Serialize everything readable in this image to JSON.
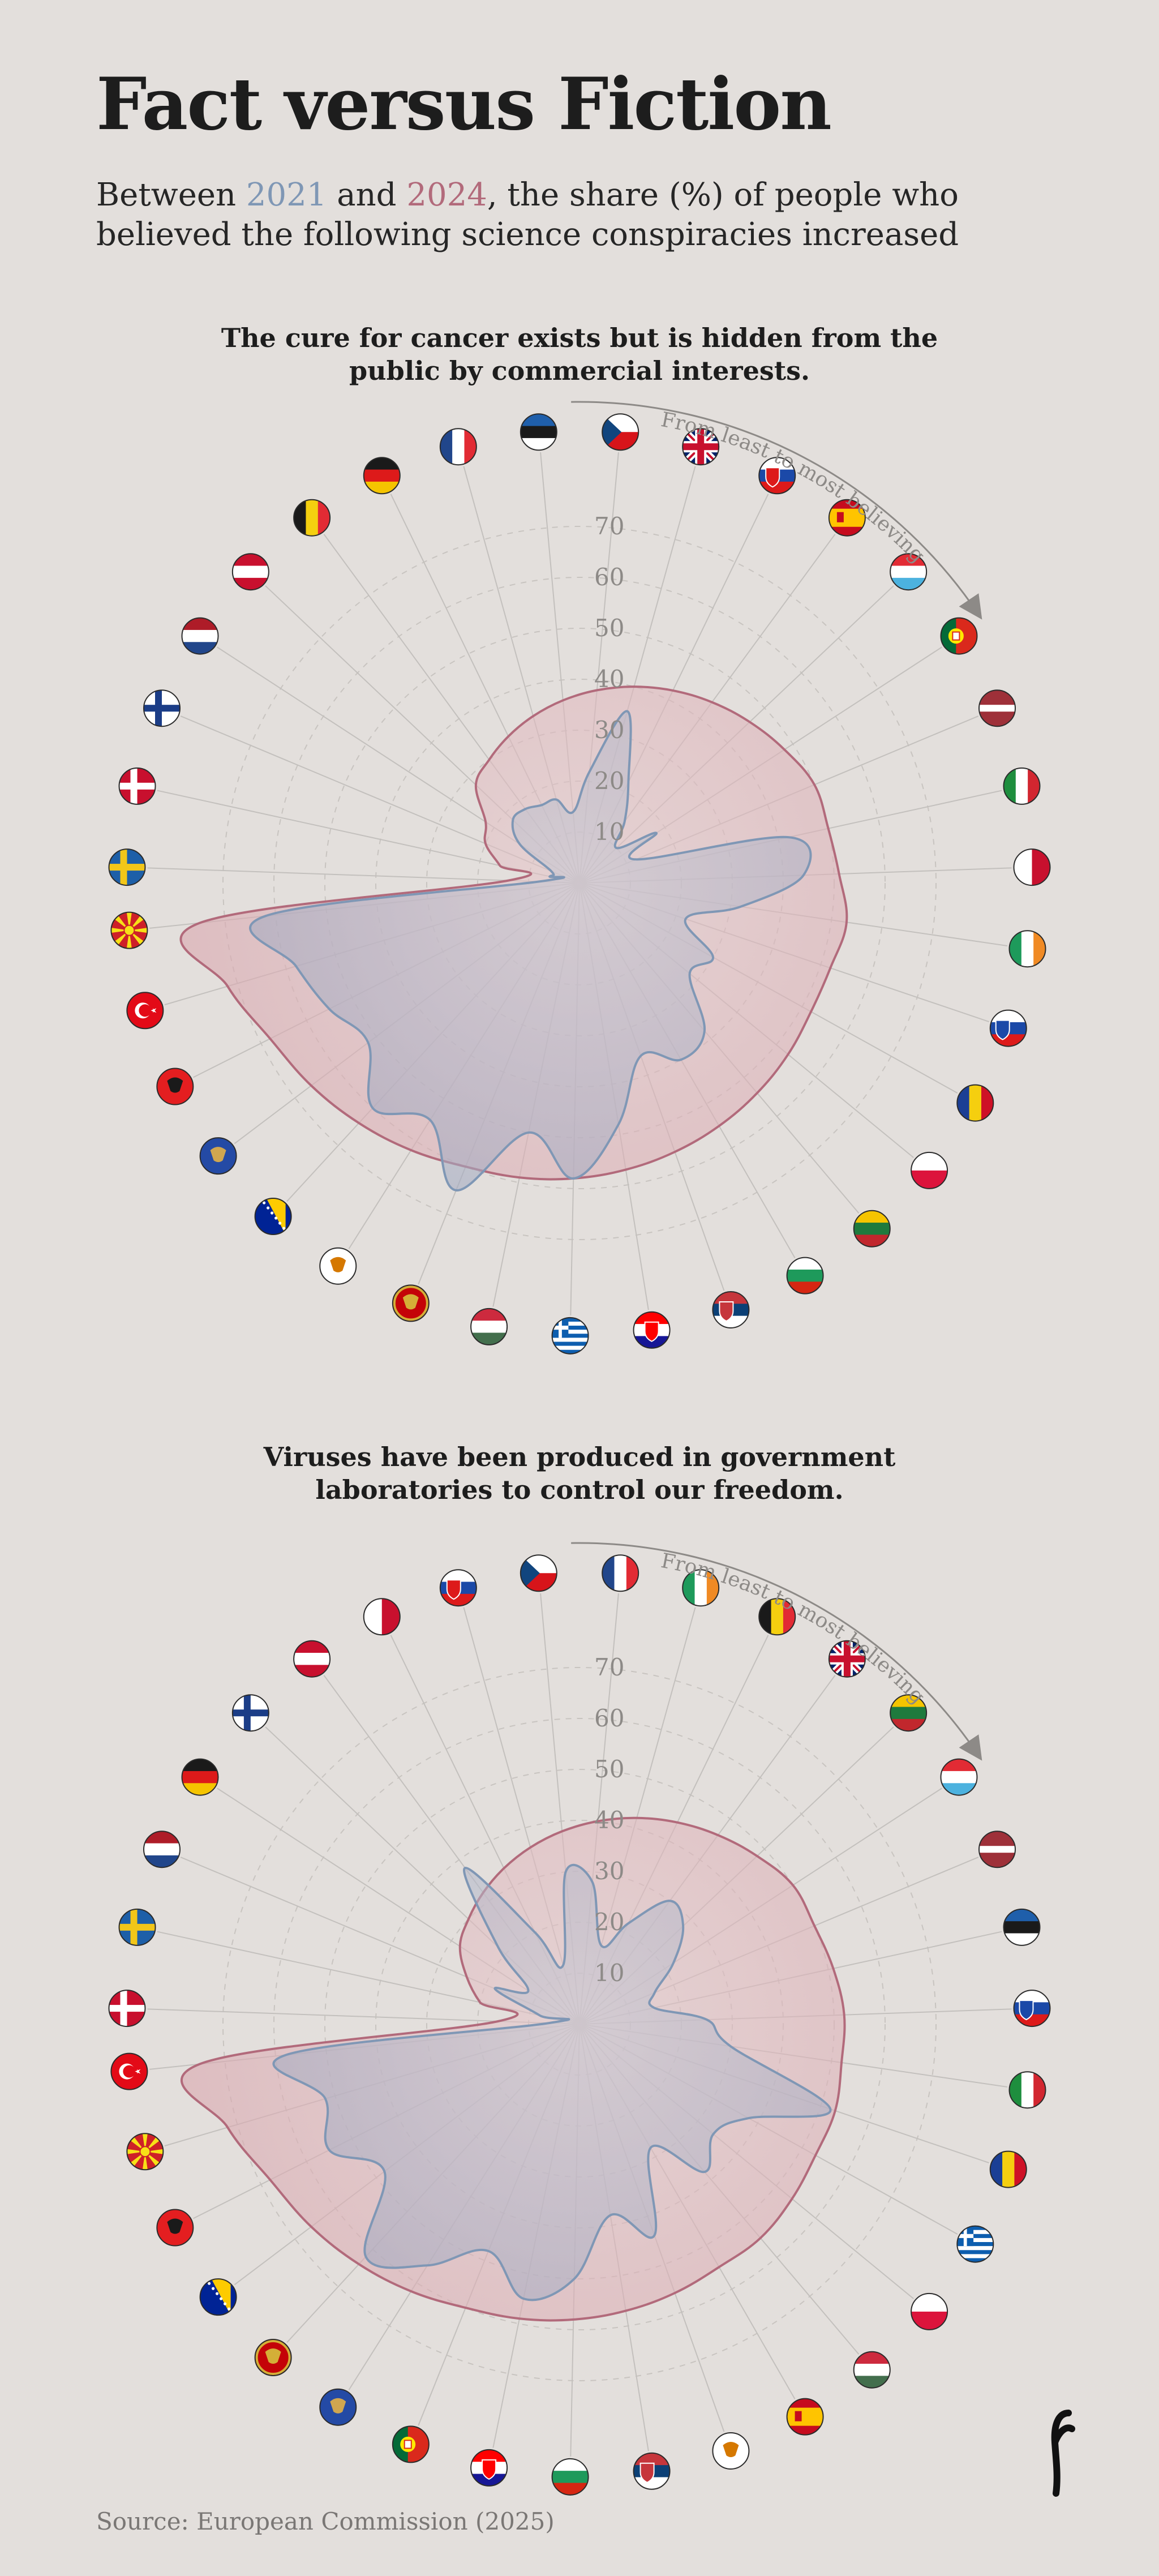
{
  "header": {
    "title": "Fact versus Fiction",
    "subtitle_parts": [
      "Between ",
      "2021",
      " and ",
      "2024",
      ", the share (%) of people who believed the following science conspiracies increased"
    ]
  },
  "colors": {
    "y2021": "#7f97b5",
    "y2024": "#b26a7b",
    "fill2021": "#9aa3bd",
    "fill2024": "#d9a5ad",
    "background": "#e3dfdc"
  },
  "arrow_label": "From least to most believing",
  "source": "Source: European Commission (2025)",
  "chart_data": [
    {
      "type": "radar",
      "title": "The cure for cancer exists but is hidden from the public by commercial interests.",
      "r_ticks": [
        10,
        20,
        30,
        40,
        50,
        60,
        70
      ],
      "rlim": [
        0,
        80
      ],
      "grid": true,
      "countries": [
        "Sweden",
        "Denmark",
        "Finland",
        "Netherlands",
        "Austria",
        "Belgium",
        "Germany",
        "France",
        "Estonia",
        "Czechia",
        "United Kingdom",
        "Slovakia",
        "Spain",
        "Luxembourg",
        "Portugal",
        "Latvia",
        "Italy",
        "Malta",
        "Ireland",
        "Slovenia",
        "Romania",
        "Poland",
        "Lithuania",
        "Bulgaria",
        "Serbia",
        "Croatia",
        "Greece",
        "Hungary",
        "Montenegro",
        "Cyprus",
        "Bosnia and Herzegovina",
        "Kosovo",
        "Albania",
        "Türkiye",
        "North Macedonia"
      ],
      "series": [
        {
          "name": "2021",
          "values": [
            8,
            6,
            6,
            14,
            18,
            18,
            17,
            17,
            14,
            22,
            35,
            22,
            15,
            10,
            18,
            12,
            42,
            44,
            32,
            22,
            30,
            28,
            38,
            40,
            36,
            48,
            58,
            50,
            65,
            55,
            60,
            52,
            55,
            58,
            62
          ]
        },
        {
          "name": "2024",
          "values": [
            14,
            16,
            20,
            22,
            28,
            30,
            32,
            34,
            36,
            38,
            40,
            42,
            44,
            46,
            48,
            50,
            50,
            51,
            53,
            52,
            52,
            53,
            54,
            55,
            56,
            57,
            58,
            59,
            60,
            62,
            64,
            66,
            68,
            72,
            75
          ]
        }
      ]
    },
    {
      "type": "radar",
      "title": "Viruses have been produced in government laboratories to control our freedom.",
      "r_ticks": [
        10,
        20,
        30,
        40,
        50,
        60,
        70
      ],
      "rlim": [
        0,
        80
      ],
      "grid": true,
      "countries": [
        "Denmark",
        "Sweden",
        "Netherlands",
        "Germany",
        "Finland",
        "Austria",
        "Malta",
        "Slovakia",
        "Czechia",
        "France",
        "Ireland",
        "Belgium",
        "United Kingdom",
        "Lithuania",
        "Luxembourg",
        "Latvia",
        "Estonia",
        "Slovenia",
        "Italy",
        "Romania",
        "Greece",
        "Poland",
        "Hungary",
        "Spain",
        "Cyprus",
        "Serbia",
        "Bulgaria",
        "Croatia",
        "Portugal",
        "Kosovo",
        "Montenegro",
        "Bosnia and Herzegovina",
        "Albania",
        "North Macedonia",
        "Türkiye"
      ],
      "series": [
        {
          "name": "2021",
          "values": [
            6,
            8,
            18,
            12,
            22,
            38,
            20,
            12,
            30,
            28,
            16,
            22,
            30,
            28,
            22,
            16,
            15,
            25,
            30,
            52,
            38,
            34,
            38,
            28,
            44,
            38,
            50,
            55,
            48,
            56,
            62,
            48,
            55,
            52,
            58
          ]
        },
        {
          "name": "2024",
          "values": [
            16,
            20,
            24,
            28,
            30,
            32,
            34,
            36,
            38,
            40,
            42,
            44,
            46,
            48,
            50,
            50,
            51,
            52,
            52,
            53,
            53,
            54,
            55,
            55,
            56,
            57,
            58,
            59,
            60,
            62,
            64,
            66,
            68,
            72,
            75
          ]
        }
      ]
    }
  ]
}
